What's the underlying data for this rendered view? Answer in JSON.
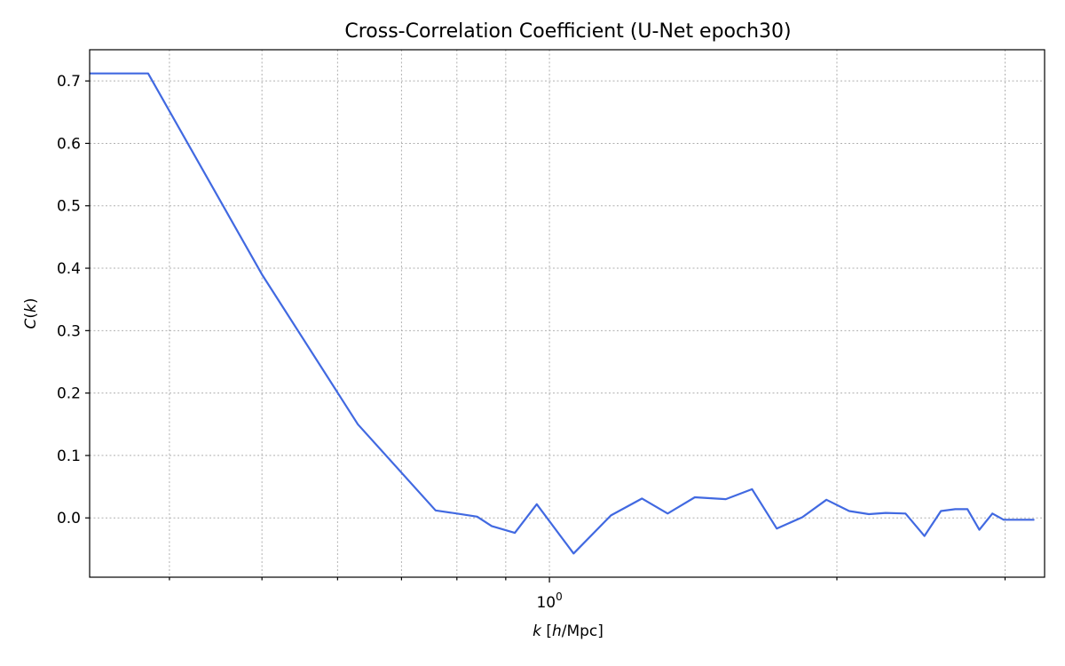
{
  "chart_data": {
    "type": "line",
    "title": "Cross-Correlation Coefficient (U-Net epoch30)",
    "xlabel_var": "k",
    "xlabel_open": " [",
    "xlabel_h": "h",
    "xlabel_unit": "/Mpc]",
    "ylabel_var": "C",
    "ylabel_paren_open": "(",
    "ylabel_arg": "k",
    "ylabel_paren_close": ")",
    "x_scale": "log",
    "xlim": [
      0.33,
      3.3
    ],
    "ylim": [
      -0.095,
      0.75
    ],
    "yticks": [
      0.0,
      0.1,
      0.2,
      0.3,
      0.4,
      0.5,
      0.6,
      0.7
    ],
    "ytick_labels": [
      "0.0",
      "0.1",
      "0.2",
      "0.3",
      "0.4",
      "0.5",
      "0.6",
      "0.7"
    ],
    "xtick_major_base": "10",
    "xtick_major_exp": "0",
    "xtick_major_value": 1.0,
    "xticks_minor": [
      0.4,
      0.5,
      0.6,
      0.7,
      0.8,
      0.9,
      2.0,
      3.0
    ],
    "grid": true,
    "grid_style": "dotted",
    "line_color": "#4169e1",
    "series": [
      {
        "x": [
          0.33,
          0.38,
          0.5,
          0.63,
          0.76,
          0.8,
          0.84,
          0.87,
          0.92,
          0.97,
          1.06,
          1.16,
          1.25,
          1.33,
          1.42,
          1.53,
          1.63,
          1.73,
          1.84,
          1.95,
          2.06,
          2.16,
          2.25,
          2.36,
          2.47,
          2.57,
          2.66,
          2.74,
          2.82,
          2.91,
          2.99,
          3.05,
          3.11,
          3.17,
          3.22
        ],
        "y": [
          0.712,
          0.712,
          0.39,
          0.15,
          0.012,
          0.007,
          0.002,
          -0.013,
          -0.024,
          0.022,
          -0.057,
          0.004,
          0.031,
          0.007,
          0.033,
          0.03,
          0.046,
          -0.017,
          0.001,
          0.029,
          0.011,
          0.006,
          0.008,
          0.007,
          -0.029,
          0.011,
          0.014,
          0.014,
          -0.019,
          0.007,
          -0.003,
          -0.003,
          -0.003,
          -0.003,
          -0.003
        ]
      }
    ]
  }
}
